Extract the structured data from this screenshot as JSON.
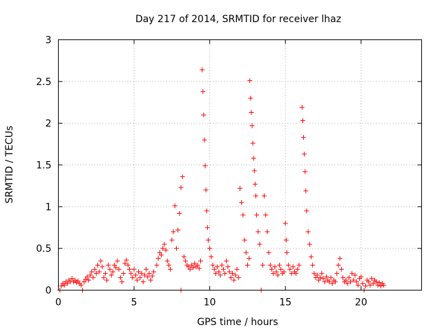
{
  "chart_data": {
    "type": "scatter",
    "title": "Day 217 of 2014, SRMTID for receiver lhaz",
    "xlabel": "GPS time / hours",
    "ylabel": "SRMTID / TECUs",
    "xlim": [
      0,
      24
    ],
    "ylim": [
      0,
      3
    ],
    "xticks": [
      0,
      5,
      10,
      15,
      20
    ],
    "yticks": [
      0,
      0.5,
      1,
      1.5,
      2,
      2.5,
      3
    ],
    "xtick_labels": [
      "0",
      "5",
      "10",
      "15",
      "20"
    ],
    "ytick_labels": [
      "0",
      "0.5",
      "1",
      "1.5",
      "2",
      "2.5",
      "3"
    ],
    "grid": true,
    "marker": "+",
    "marker_color": "#ff0000",
    "series": [
      {
        "name": "SRMTID",
        "points": [
          [
            0.1,
            0.0
          ],
          [
            0.2,
            0.05
          ],
          [
            0.3,
            0.08
          ],
          [
            0.4,
            0.06
          ],
          [
            0.5,
            0.1
          ],
          [
            0.6,
            0.08
          ],
          [
            0.7,
            0.12
          ],
          [
            0.8,
            0.1
          ],
          [
            0.9,
            0.14
          ],
          [
            1.0,
            0.1
          ],
          [
            1.1,
            0.12
          ],
          [
            1.2,
            0.09
          ],
          [
            1.3,
            0.11
          ],
          [
            1.4,
            0.08
          ],
          [
            1.5,
            0.06
          ],
          [
            1.6,
            0.0
          ],
          [
            1.7,
            0.1
          ],
          [
            1.8,
            0.13
          ],
          [
            1.9,
            0.16
          ],
          [
            2.0,
            0.12
          ],
          [
            2.1,
            0.18
          ],
          [
            2.2,
            0.22
          ],
          [
            2.3,
            0.15
          ],
          [
            2.4,
            0.25
          ],
          [
            2.5,
            0.2
          ],
          [
            2.6,
            0.3
          ],
          [
            2.7,
            0.22
          ],
          [
            2.8,
            0.35
          ],
          [
            2.9,
            0.28
          ],
          [
            3.0,
            0.15
          ],
          [
            3.1,
            0.2
          ],
          [
            3.2,
            0.12
          ],
          [
            3.3,
            0.3
          ],
          [
            3.4,
            0.25
          ],
          [
            3.5,
            0.18
          ],
          [
            3.6,
            0.22
          ],
          [
            3.7,
            0.3
          ],
          [
            3.8,
            0.27
          ],
          [
            3.9,
            0.35
          ],
          [
            4.0,
            0.25
          ],
          [
            4.1,
            0.15
          ],
          [
            4.2,
            0.1
          ],
          [
            4.3,
            0.2
          ],
          [
            4.4,
            0.32
          ],
          [
            4.5,
            0.36
          ],
          [
            4.6,
            0.3
          ],
          [
            4.7,
            0.25
          ],
          [
            4.8,
            0.2
          ],
          [
            4.9,
            0.15
          ],
          [
            5.0,
            0.25
          ],
          [
            5.1,
            0.18
          ],
          [
            5.2,
            0.12
          ],
          [
            5.3,
            0.22
          ],
          [
            5.4,
            0.15
          ],
          [
            5.5,
            0.2
          ],
          [
            5.6,
            0.1
          ],
          [
            5.7,
            0.18
          ],
          [
            5.8,
            0.25
          ],
          [
            5.9,
            0.16
          ],
          [
            6.0,
            0.2
          ],
          [
            6.1,
            0.12
          ],
          [
            6.2,
            0.17
          ],
          [
            6.3,
            0.22
          ],
          [
            6.5,
            0.3
          ],
          [
            6.6,
            0.38
          ],
          [
            6.7,
            0.45
          ],
          [
            6.8,
            0.42
          ],
          [
            6.9,
            0.5
          ],
          [
            7.0,
            0.55
          ],
          [
            7.1,
            0.48
          ],
          [
            7.2,
            0.35
          ],
          [
            7.3,
            0.3
          ],
          [
            7.4,
            0.25
          ],
          [
            7.5,
            0.6
          ],
          [
            7.6,
            0.7
          ],
          [
            7.7,
            1.01
          ],
          [
            7.8,
            0.5
          ],
          [
            7.9,
            0.72
          ],
          [
            8.0,
            0.92
          ],
          [
            8.1,
            0.0
          ],
          [
            8.1,
            1.23
          ],
          [
            8.2,
            1.36
          ],
          [
            8.3,
            0.4
          ],
          [
            8.4,
            0.35
          ],
          [
            8.5,
            0.3
          ],
          [
            8.6,
            0.28
          ],
          [
            8.7,
            0.25
          ],
          [
            8.8,
            0.3
          ],
          [
            8.9,
            0.27
          ],
          [
            9.0,
            0.32
          ],
          [
            9.1,
            0.28
          ],
          [
            9.2,
            0.3
          ],
          [
            9.3,
            0.26
          ],
          [
            9.4,
            0.35
          ],
          [
            9.5,
            2.64
          ],
          [
            9.55,
            2.38
          ],
          [
            9.6,
            2.1
          ],
          [
            9.65,
            1.8
          ],
          [
            9.7,
            1.49
          ],
          [
            9.75,
            1.2
          ],
          [
            9.8,
            0.95
          ],
          [
            9.85,
            0.75
          ],
          [
            9.9,
            0.6
          ],
          [
            10.0,
            0.5
          ],
          [
            10.1,
            0.4
          ],
          [
            10.2,
            0.3
          ],
          [
            10.3,
            0.25
          ],
          [
            10.4,
            0.2
          ],
          [
            10.5,
            0.28
          ],
          [
            10.6,
            0.22
          ],
          [
            10.7,
            0.18
          ],
          [
            10.8,
            0.3
          ],
          [
            10.9,
            0.25
          ],
          [
            11.0,
            0.2
          ],
          [
            11.1,
            0.35
          ],
          [
            11.2,
            0.28
          ],
          [
            11.3,
            0.22
          ],
          [
            11.4,
            0.15
          ],
          [
            11.5,
            0.2
          ],
          [
            11.6,
            0.12
          ],
          [
            11.7,
            0.18
          ],
          [
            11.8,
            0.25
          ],
          [
            11.9,
            0.15
          ],
          [
            12.0,
            1.22
          ],
          [
            12.1,
            1.05
          ],
          [
            12.2,
            0.9
          ],
          [
            12.3,
            0.6
          ],
          [
            12.4,
            0.45
          ],
          [
            12.5,
            0.3
          ],
          [
            12.6,
            0.38
          ],
          [
            12.65,
            2.51
          ],
          [
            12.7,
            2.3
          ],
          [
            12.75,
            2.13
          ],
          [
            12.8,
            1.97
          ],
          [
            12.85,
            1.76
          ],
          [
            12.9,
            1.58
          ],
          [
            12.95,
            1.43
          ],
          [
            13.0,
            1.27
          ],
          [
            13.05,
            1.13
          ],
          [
            13.1,
            0.9
          ],
          [
            13.2,
            0.7
          ],
          [
            13.3,
            0.55
          ],
          [
            13.4,
            0.0
          ],
          [
            13.5,
            0.3
          ],
          [
            13.6,
            1.13
          ],
          [
            13.7,
            0.9
          ],
          [
            13.8,
            0.7
          ],
          [
            13.9,
            0.45
          ],
          [
            14.0,
            0.3
          ],
          [
            14.1,
            0.25
          ],
          [
            14.2,
            0.2
          ],
          [
            14.3,
            0.28
          ],
          [
            14.4,
            0.22
          ],
          [
            14.5,
            0.18
          ],
          [
            14.6,
            0.3
          ],
          [
            14.7,
            0.25
          ],
          [
            14.8,
            0.2
          ],
          [
            14.9,
            0.22
          ],
          [
            15.0,
            0.8
          ],
          [
            15.05,
            0.6
          ],
          [
            15.1,
            0.45
          ],
          [
            15.2,
            0.3
          ],
          [
            15.3,
            0.25
          ],
          [
            15.4,
            0.2
          ],
          [
            15.5,
            0.28
          ],
          [
            15.6,
            0.22
          ],
          [
            15.7,
            0.2
          ],
          [
            15.8,
            0.25
          ],
          [
            15.9,
            0.3
          ],
          [
            16.1,
            2.19
          ],
          [
            16.15,
            2.03
          ],
          [
            16.2,
            1.83
          ],
          [
            16.25,
            1.63
          ],
          [
            16.3,
            1.42
          ],
          [
            16.35,
            1.19
          ],
          [
            16.4,
            0.95
          ],
          [
            16.5,
            0.7
          ],
          [
            16.6,
            0.55
          ],
          [
            16.7,
            0.4
          ],
          [
            16.8,
            0.3
          ],
          [
            16.9,
            0.2
          ],
          [
            17.0,
            0.15
          ],
          [
            17.1,
            0.18
          ],
          [
            17.2,
            0.12
          ],
          [
            17.3,
            0.15
          ],
          [
            17.4,
            0.2
          ],
          [
            17.5,
            0.14
          ],
          [
            17.6,
            0.1
          ],
          [
            17.7,
            0.16
          ],
          [
            17.8,
            0.12
          ],
          [
            17.9,
            0.1
          ],
          [
            18.0,
            0.15
          ],
          [
            18.1,
            0.08
          ],
          [
            18.2,
            0.12
          ],
          [
            18.3,
            0.1
          ],
          [
            18.4,
            0.2
          ],
          [
            18.5,
            0.3
          ],
          [
            18.6,
            0.38
          ],
          [
            18.7,
            0.25
          ],
          [
            18.8,
            0.15
          ],
          [
            18.9,
            0.1
          ],
          [
            19.0,
            0.12
          ],
          [
            19.1,
            0.08
          ],
          [
            19.2,
            0.15
          ],
          [
            19.3,
            0.1
          ],
          [
            19.4,
            0.2
          ],
          [
            19.5,
            0.12
          ],
          [
            19.6,
            0.18
          ],
          [
            19.7,
            0.1
          ],
          [
            19.8,
            0.06
          ],
          [
            19.9,
            0.14
          ],
          [
            20.0,
            0.16
          ],
          [
            20.1,
            0.08
          ],
          [
            20.2,
            0.0
          ],
          [
            20.3,
            0.05
          ],
          [
            20.4,
            0.12
          ],
          [
            20.5,
            0.1
          ],
          [
            20.6,
            0.06
          ],
          [
            20.7,
            0.14
          ],
          [
            20.8,
            0.08
          ],
          [
            20.9,
            0.12
          ],
          [
            21.0,
            0.1
          ],
          [
            21.1,
            0.06
          ],
          [
            21.2,
            0.09
          ],
          [
            21.3,
            0.05
          ],
          [
            21.4,
            0.08
          ],
          [
            21.5,
            0.06
          ]
        ]
      }
    ]
  }
}
